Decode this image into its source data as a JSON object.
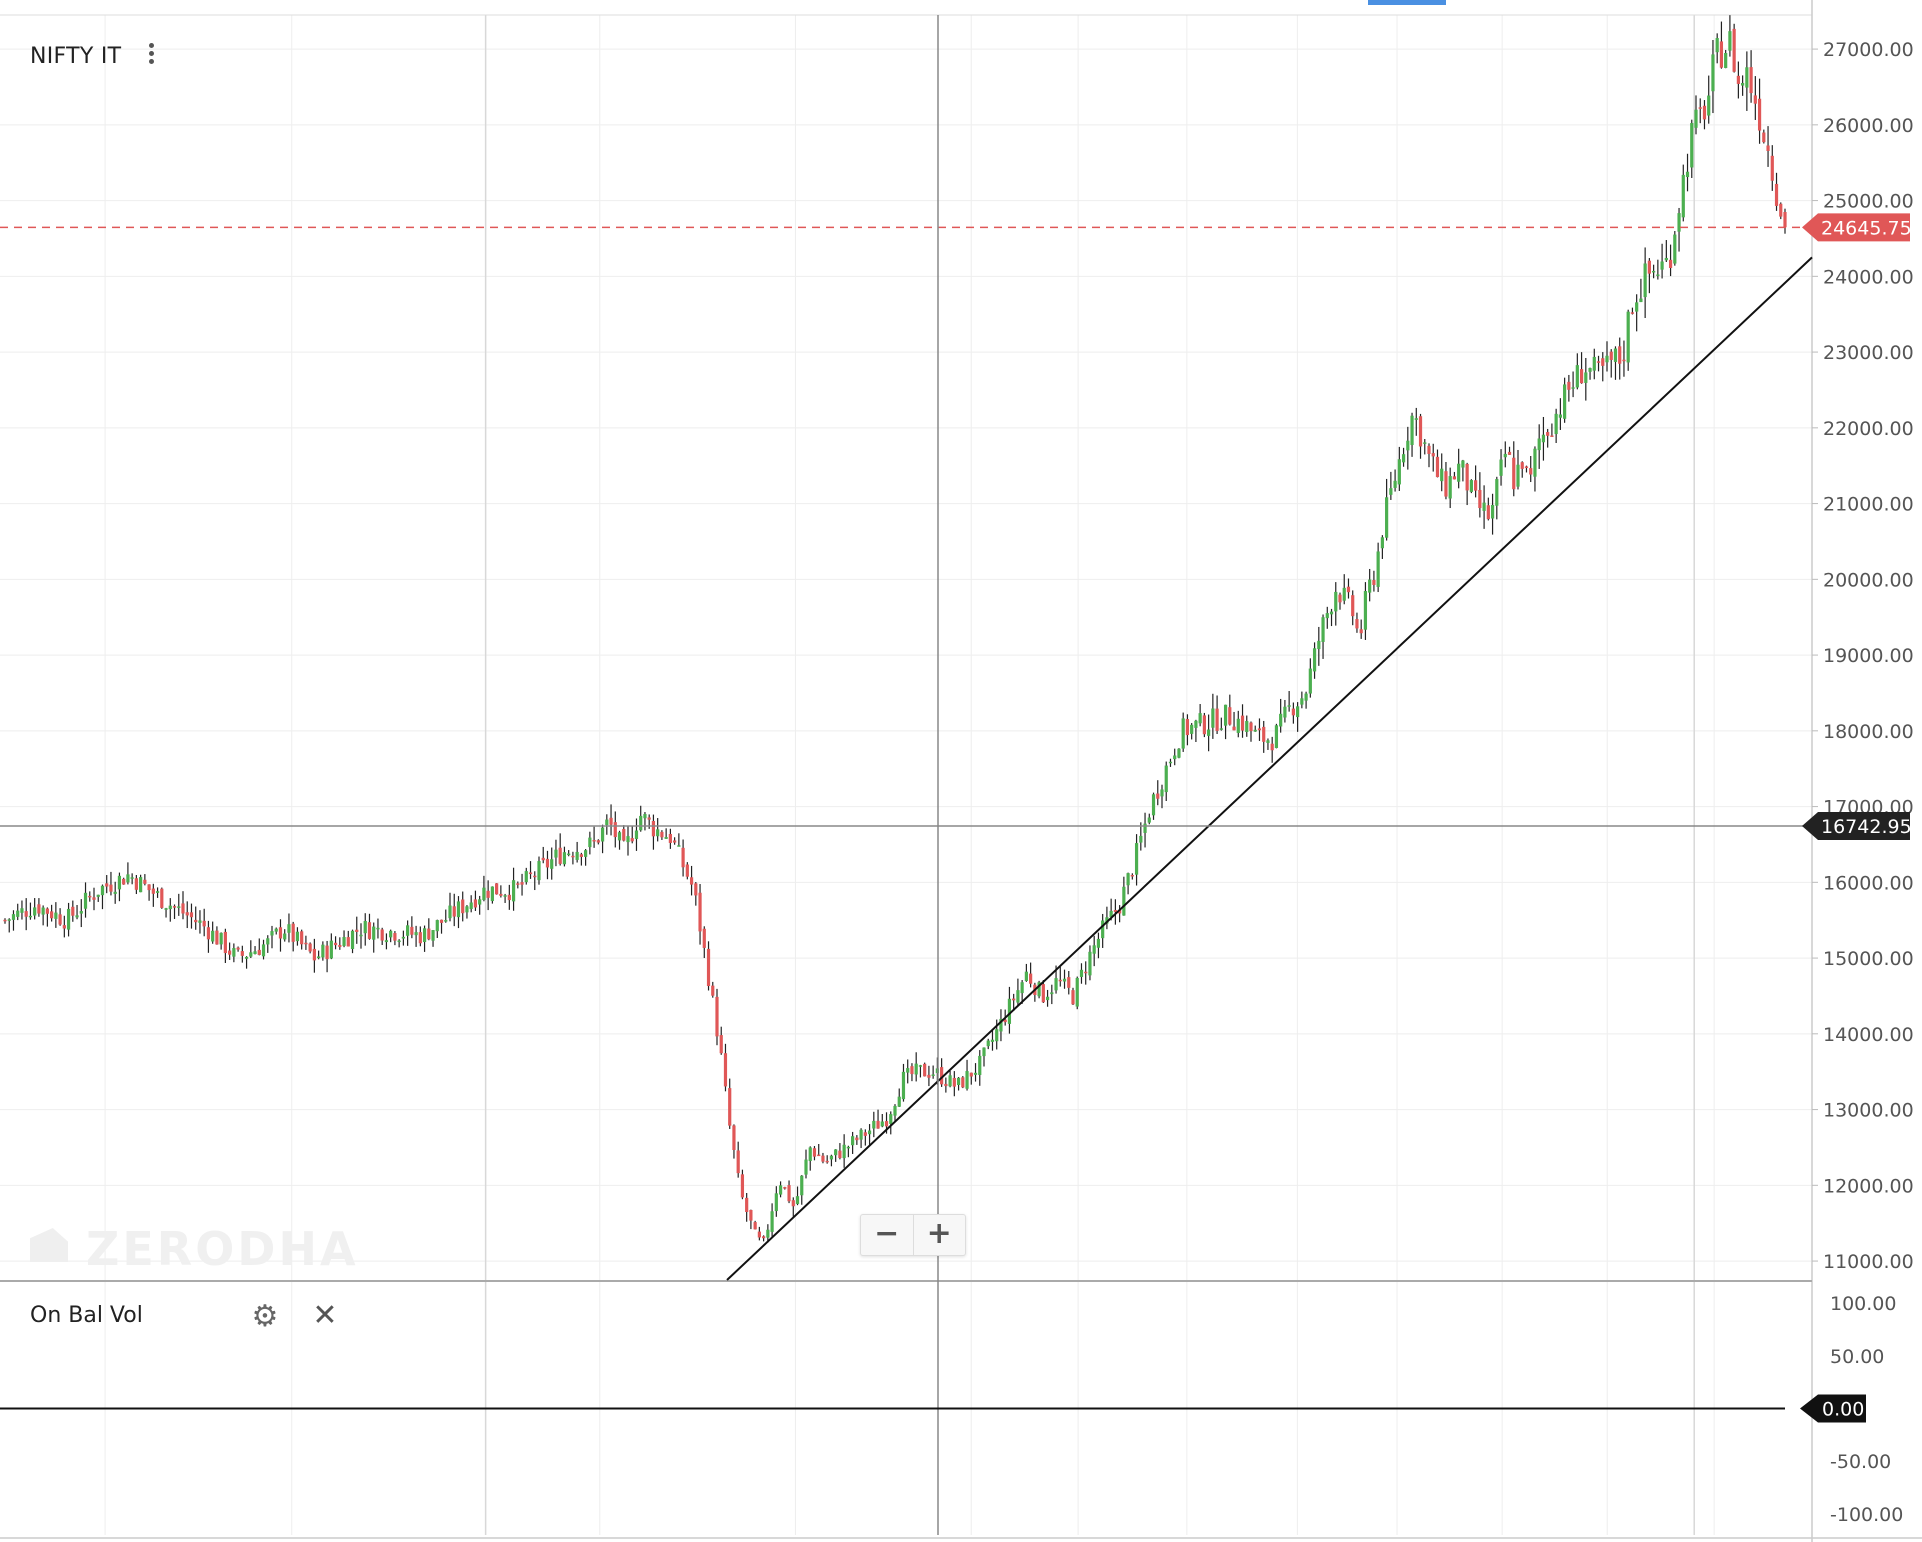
{
  "symbol": "NIFTY IT",
  "watermark": "ZERODHA",
  "indicator": {
    "label": "On Bal Vol"
  },
  "zoom": {
    "out_label": "−",
    "in_label": "+"
  },
  "colors": {
    "up": "#4caf50",
    "down": "#e05757",
    "last_price": "#e05757",
    "crosshair_tag": "#222222"
  },
  "icons": {
    "menu": "vertical-dots-icon",
    "settings": "gear-icon",
    "close": "close-icon"
  },
  "chart_data": {
    "type": "candlestick",
    "title": "NIFTY IT",
    "y_axis": {
      "min": 10750,
      "max": 27450,
      "ticks": [
        11000,
        12000,
        13000,
        14000,
        15000,
        16000,
        17000,
        18000,
        19000,
        20000,
        21000,
        22000,
        23000,
        24000,
        25000,
        26000,
        27000
      ],
      "tick_labels": [
        "11000.00",
        "12000.00",
        "13000.00",
        "14000.00",
        "15000.00",
        "16000.00",
        "17000.00",
        "18000.00",
        "19000.00",
        "20000.00",
        "21000.00",
        "22000.00",
        "23000.00",
        "24000.00",
        "25000.00",
        "26000.00",
        "27000.00"
      ]
    },
    "last_price": {
      "value": 24645.75,
      "label": "24645.75"
    },
    "crosshair": {
      "price": 16742.95,
      "label": "16742.95"
    },
    "price_path": [
      [
        0,
        15500
      ],
      [
        0.02,
        15700
      ],
      [
        0.04,
        15500
      ],
      [
        0.06,
        15900
      ],
      [
        0.08,
        16100
      ],
      [
        0.1,
        15800
      ],
      [
        0.13,
        15400
      ],
      [
        0.15,
        15000
      ],
      [
        0.17,
        15200
      ],
      [
        0.18,
        15400
      ],
      [
        0.2,
        15000
      ],
      [
        0.23,
        15400
      ],
      [
        0.27,
        15300
      ],
      [
        0.29,
        15600
      ],
      [
        0.31,
        15900
      ],
      [
        0.33,
        15900
      ],
      [
        0.36,
        16400
      ],
      [
        0.38,
        16500
      ],
      [
        0.39,
        16800
      ],
      [
        0.4,
        16400
      ],
      [
        0.41,
        16900
      ],
      [
        0.42,
        16700
      ],
      [
        0.43,
        16600
      ],
      [
        0.445,
        15900
      ],
      [
        0.455,
        14700
      ],
      [
        0.462,
        13800
      ],
      [
        0.468,
        12800
      ],
      [
        0.475,
        11900
      ],
      [
        0.485,
        11300
      ],
      [
        0.49,
        11200
      ],
      [
        0.5,
        12100
      ],
      [
        0.51,
        11700
      ],
      [
        0.52,
        12500
      ],
      [
        0.53,
        12300
      ],
      [
        0.55,
        12600
      ],
      [
        0.57,
        12900
      ],
      [
        0.58,
        13400
      ],
      [
        0.59,
        13500
      ],
      [
        0.6,
        13500
      ],
      [
        0.615,
        13300
      ],
      [
        0.63,
        13600
      ],
      [
        0.645,
        14200
      ],
      [
        0.66,
        14800
      ],
      [
        0.67,
        14500
      ],
      [
        0.68,
        14700
      ],
      [
        0.69,
        14500
      ],
      [
        0.7,
        15000
      ],
      [
        0.71,
        15400
      ],
      [
        0.72,
        15700
      ],
      [
        0.73,
        16300
      ],
      [
        0.74,
        17000
      ],
      [
        0.75,
        17500
      ],
      [
        0.76,
        18000
      ],
      [
        0.775,
        18100
      ],
      [
        0.79,
        18200
      ],
      [
        0.8,
        18100
      ],
      [
        0.81,
        17900
      ],
      [
        0.82,
        17900
      ],
      [
        0.83,
        18300
      ],
      [
        0.84,
        18500
      ],
      [
        0.85,
        19300
      ],
      [
        0.86,
        19900
      ],
      [
        0.87,
        19600
      ],
      [
        0.875,
        19200
      ],
      [
        0.88,
        19800
      ],
      [
        0.885,
        20100
      ],
      [
        0.89,
        20700
      ],
      [
        0.9,
        21500
      ],
      [
        0.905,
        21900
      ],
      [
        0.91,
        22200
      ],
      [
        0.92,
        21600
      ],
      [
        0.93,
        21200
      ],
      [
        0.94,
        21500
      ],
      [
        0.95,
        21000
      ],
      [
        0.96,
        20800
      ],
      [
        0.965,
        21300
      ],
      [
        0.97,
        21700
      ],
      [
        0.975,
        21300
      ],
      [
        0.98,
        21600
      ],
      [
        0.985,
        21200
      ],
      [
        0.99,
        21800
      ],
      [
        1.0,
        22100
      ],
      [
        1.01,
        22500
      ],
      [
        1.02,
        22800
      ],
      [
        1.03,
        22700
      ],
      [
        1.04,
        22900
      ],
      [
        1.045,
        22900
      ],
      [
        1.05,
        23600
      ],
      [
        1.06,
        24000
      ],
      [
        1.075,
        24200
      ],
      [
        1.08,
        24800
      ],
      [
        1.09,
        25900
      ],
      [
        1.1,
        26300
      ],
      [
        1.105,
        26900
      ],
      [
        1.11,
        27000
      ],
      [
        1.115,
        27100
      ],
      [
        1.12,
        26500
      ],
      [
        1.125,
        26700
      ],
      [
        1.13,
        26400
      ],
      [
        1.14,
        25600
      ],
      [
        1.145,
        25100
      ],
      [
        1.15,
        24646
      ]
    ],
    "trend_line": {
      "from": [
        0.4,
        10750
      ],
      "to": [
        1.0,
        24250
      ]
    }
  },
  "indicator_data": {
    "name": "On Bal Vol",
    "y_axis": {
      "ticks": [
        100,
        50,
        -50,
        -100
      ],
      "tick_labels": [
        "100.00",
        "50.00",
        "-50.00",
        "-100.00"
      ]
    },
    "last_value": {
      "value": 0,
      "label": "0.00"
    }
  }
}
